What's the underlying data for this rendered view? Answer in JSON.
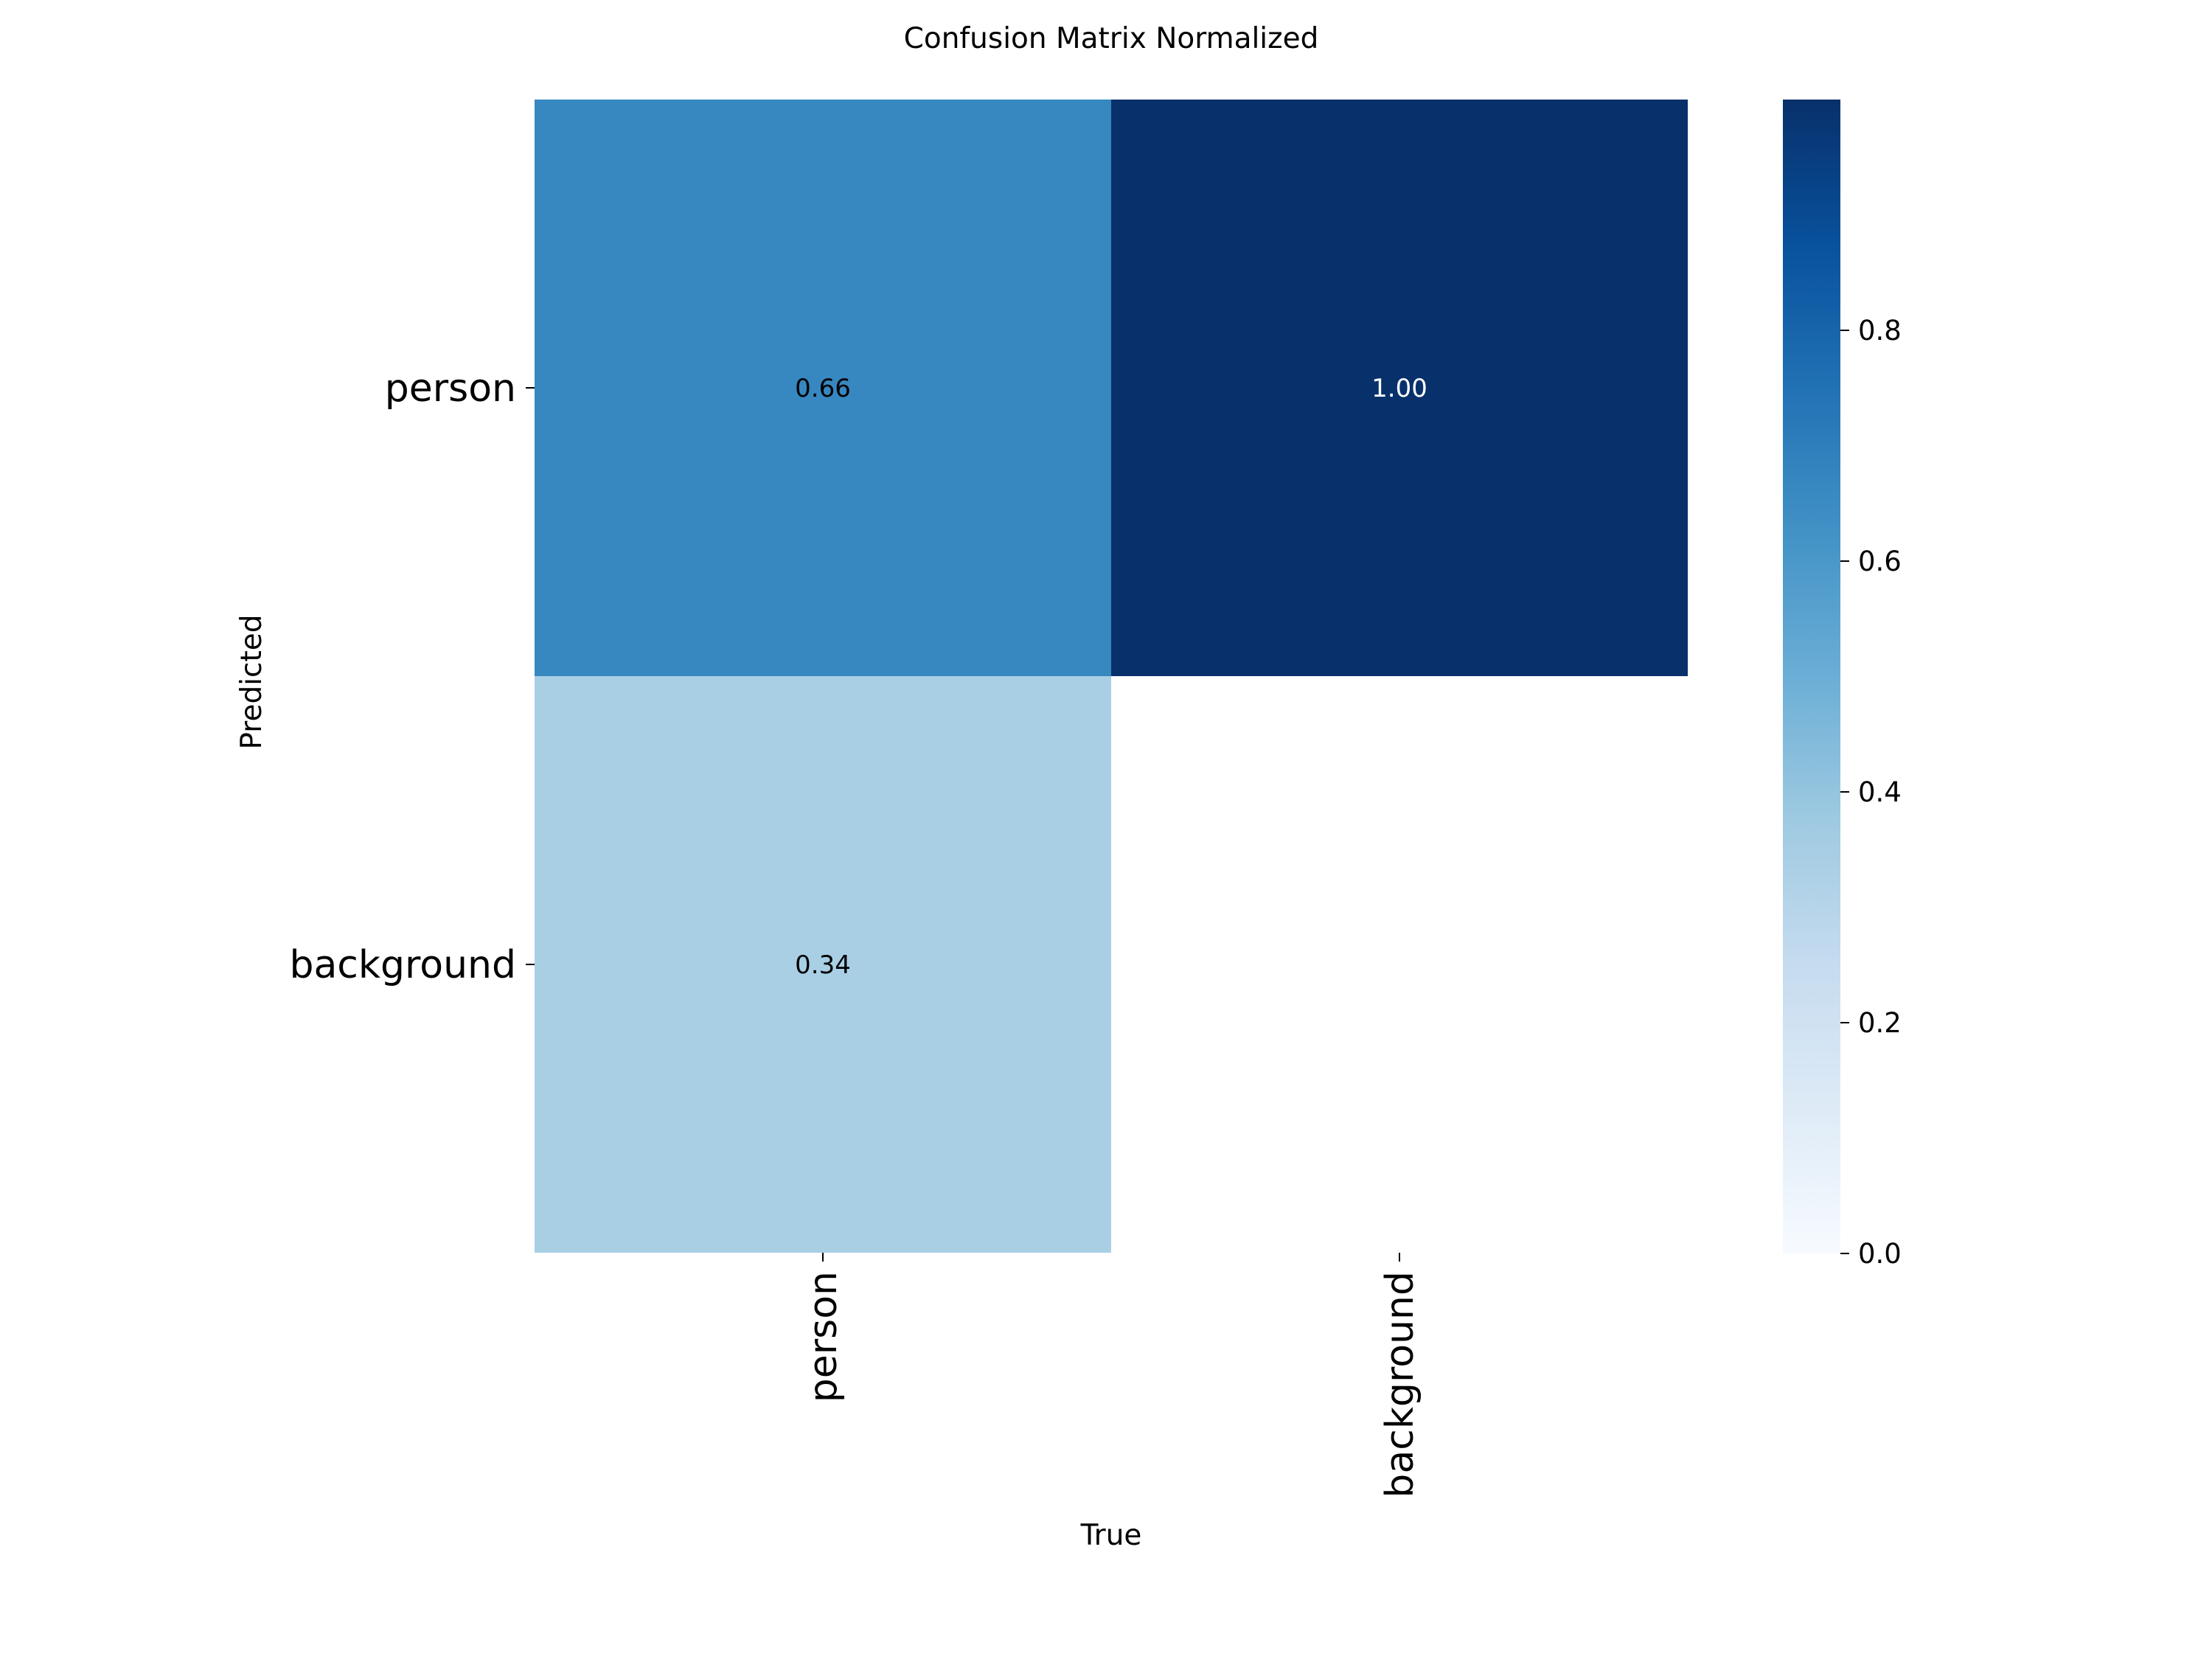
{
  "chart_data": {
    "type": "heatmap",
    "title": "Confusion Matrix Normalized",
    "xlabel": "True",
    "ylabel": "Predicted",
    "x_categories": [
      "person",
      "background"
    ],
    "y_categories": [
      "person",
      "background"
    ],
    "values": [
      [
        0.66,
        1.0
      ],
      [
        0.34,
        null
      ]
    ],
    "cell_labels": [
      [
        "0.66",
        "1.00"
      ],
      [
        "0.34",
        ""
      ]
    ],
    "colormap": "Blues",
    "color_range": [
      0.0,
      1.0
    ],
    "colorbar": {
      "ticks": [
        0.0,
        0.2,
        0.4,
        0.6,
        0.8
      ],
      "tick_labels": [
        "0.0",
        "0.2",
        "0.4",
        "0.6",
        "0.8"
      ]
    },
    "colors": {
      "cell_0_0": "#3787c0",
      "cell_0_1": "#08306b",
      "cell_1_0": "#a9cfe5",
      "blank_cell": "#ffffff"
    }
  }
}
